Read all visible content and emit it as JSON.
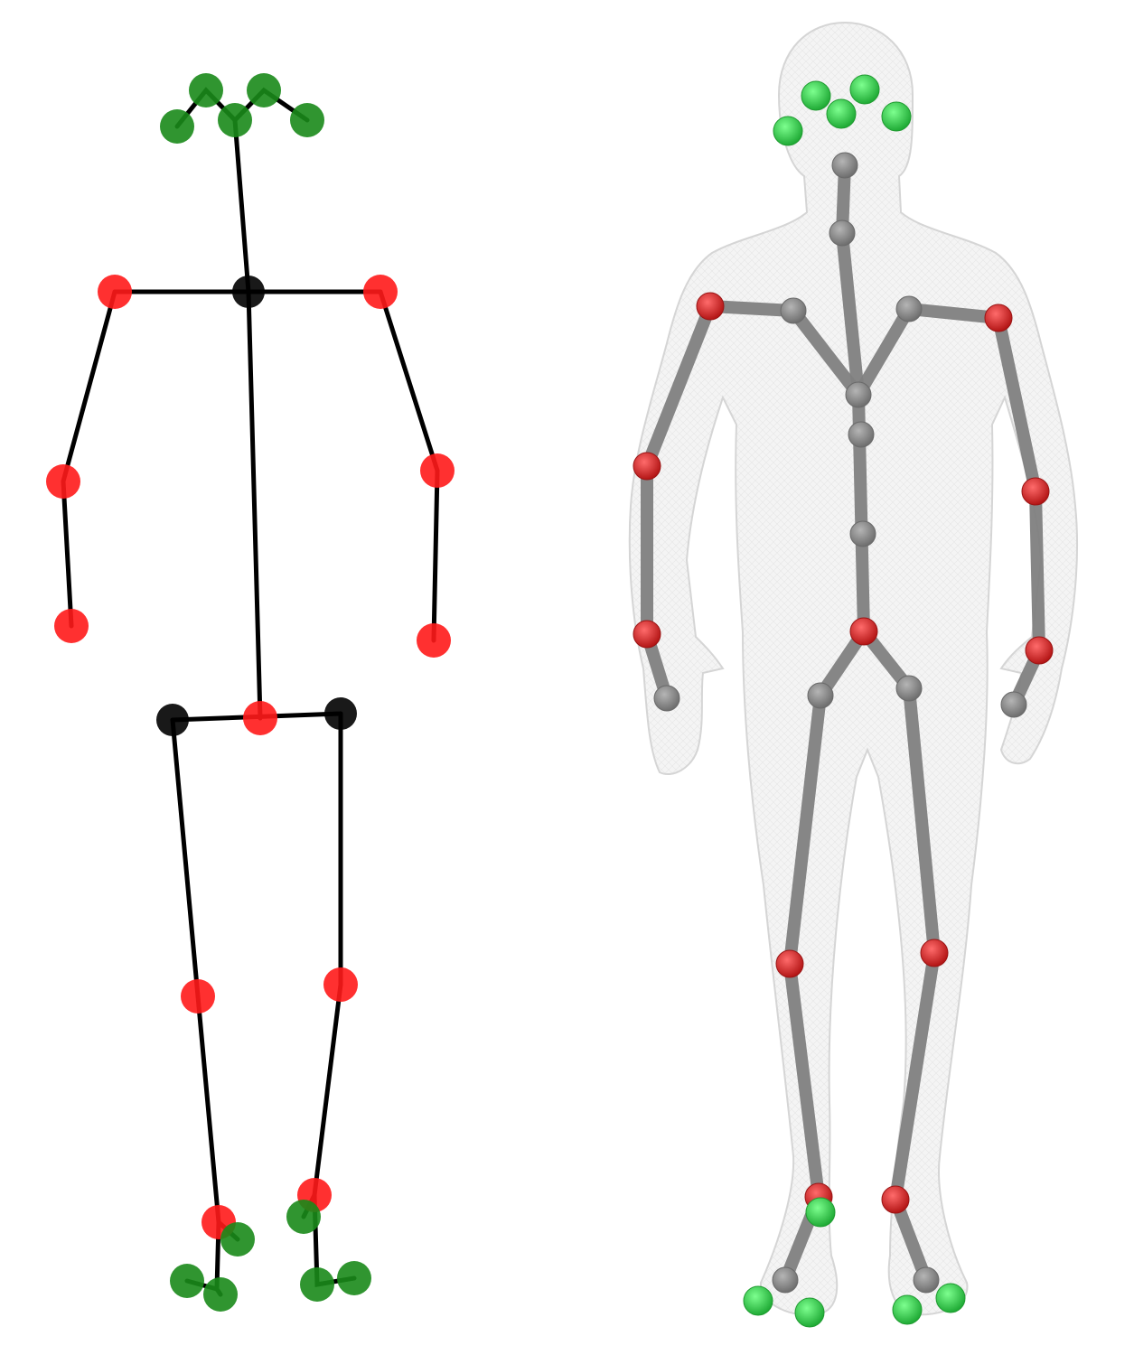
{
  "figure": {
    "left_panel": {
      "name": "stick-figure-skeleton",
      "bone_color": "#000000",
      "joint_colors": {
        "core": "#000000",
        "limb": "#ff1a1a",
        "face_foot": "#1a8a1a"
      }
    },
    "right_panel": {
      "name": "body-mesh-skeleton",
      "mesh_color": "#f1f1f1",
      "mesh_outline": "#d9d9d9",
      "bone_color": "#808080",
      "joint_colors": {
        "internal": "#8c8c8c",
        "limb": "#d62828",
        "face_foot": "#2ecc40"
      }
    }
  }
}
